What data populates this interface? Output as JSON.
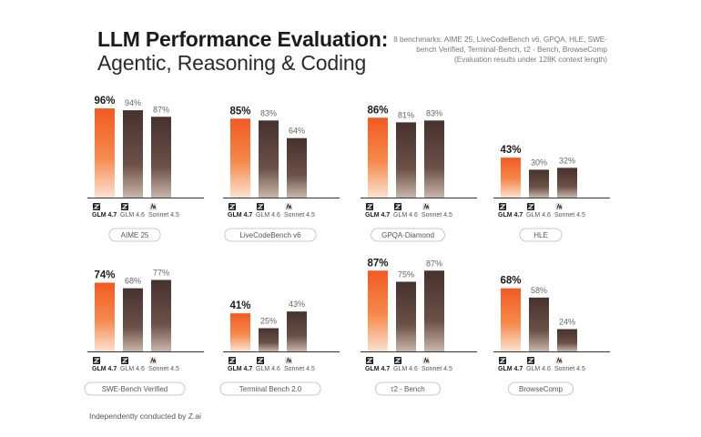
{
  "title": {
    "line1": "LLM Performance Evaluation:",
    "line2": "Agentic, Reasoning & Coding"
  },
  "subtitle": {
    "line1": "8 benchmarks: AIME 25, LiveCodeBench v6, GPQA, HLE, SWE-",
    "line2": "bench Verified, Terminal-Bench, τ2 - Bench, BrowseComp",
    "line3": "(Evaluation results under 128K context length)"
  },
  "footer": "Independently conducted by Z.ai",
  "colors": {
    "highlight_top": "#f25a22",
    "highlight_mid": "#f58a4c",
    "highlight_bottom": "#fbe2d1",
    "bar_top": "#46322d",
    "bar_bottom": "#c9b6aa",
    "axis": "#333333",
    "pill_border": "#bbbbbb"
  },
  "chart_data": [
    {
      "type": "bar",
      "title": "AIME 25",
      "categories": [
        "GLM 4.7",
        "GLM 4.6",
        "Sonnet 4.5"
      ],
      "values": [
        96,
        94,
        87
      ],
      "labels": [
        "96%",
        "94%",
        "87%"
      ],
      "icons": [
        "z-logo-icon",
        "z-logo-icon",
        "anthropic-logo-icon"
      ],
      "ylim": [
        0,
        100
      ]
    },
    {
      "type": "bar",
      "title": "LiveCodeBench v6",
      "categories": [
        "GLM 4.7",
        "GLM 4.6",
        "Sonnet 4.5"
      ],
      "values": [
        85,
        83,
        64
      ],
      "labels": [
        "85%",
        "83%",
        "64%"
      ],
      "icons": [
        "z-logo-icon",
        "z-logo-icon",
        "anthropic-logo-icon"
      ],
      "ylim": [
        0,
        100
      ]
    },
    {
      "type": "bar",
      "title": "GPQA-Diamond",
      "categories": [
        "GLM 4.7",
        "GLM 4.6",
        "Sonnet 4.5"
      ],
      "values": [
        86,
        81,
        83
      ],
      "labels": [
        "86%",
        "81%",
        "83%"
      ],
      "icons": [
        "z-logo-icon",
        "z-logo-icon",
        "anthropic-logo-icon"
      ],
      "ylim": [
        0,
        100
      ]
    },
    {
      "type": "bar",
      "title": "HLE",
      "categories": [
        "GLM 4.7",
        "GLM 4.6",
        "Sonnet 4.5"
      ],
      "values": [
        43,
        30,
        32
      ],
      "labels": [
        "43%",
        "30%",
        "32%"
      ],
      "icons": [
        "z-logo-icon",
        "z-logo-icon",
        "anthropic-logo-icon"
      ],
      "ylim": [
        0,
        100
      ]
    },
    {
      "type": "bar",
      "title": "SWE-Bench Verified",
      "categories": [
        "GLM 4.7",
        "GLM 4.6",
        "Sonnet 4.5"
      ],
      "values": [
        74,
        68,
        77
      ],
      "labels": [
        "74%",
        "68%",
        "77%"
      ],
      "icons": [
        "z-logo-icon",
        "z-logo-icon",
        "anthropic-logo-icon"
      ],
      "ylim": [
        0,
        100
      ]
    },
    {
      "type": "bar",
      "title": "Terminal Bench 2.0",
      "categories": [
        "GLM 4.7",
        "GLM 4.6",
        "Sonnet 4.5"
      ],
      "values": [
        41,
        25,
        43
      ],
      "labels": [
        "41%",
        "25%",
        "43%"
      ],
      "icons": [
        "z-logo-icon",
        "z-logo-icon",
        "anthropic-logo-icon"
      ],
      "ylim": [
        0,
        100
      ]
    },
    {
      "type": "bar",
      "title": "τ2 - Bench",
      "categories": [
        "GLM 4.7",
        "GLM 4.6",
        "Sonnet 4.5"
      ],
      "values": [
        87,
        75,
        87
      ],
      "labels": [
        "87%",
        "75%",
        "87%"
      ],
      "icons": [
        "z-logo-icon",
        "z-logo-icon",
        "anthropic-logo-icon"
      ],
      "ylim": [
        0,
        100
      ]
    },
    {
      "type": "bar",
      "title": "BrowseComp",
      "categories": [
        "GLM 4.7",
        "GLM 4.6",
        "Sonnet 4.5"
      ],
      "values": [
        68,
        58,
        24
      ],
      "labels": [
        "68%",
        "58%",
        "24%"
      ],
      "icons": [
        "z-logo-icon",
        "z-logo-icon",
        "anthropic-logo-icon"
      ],
      "ylim": [
        0,
        100
      ]
    }
  ]
}
